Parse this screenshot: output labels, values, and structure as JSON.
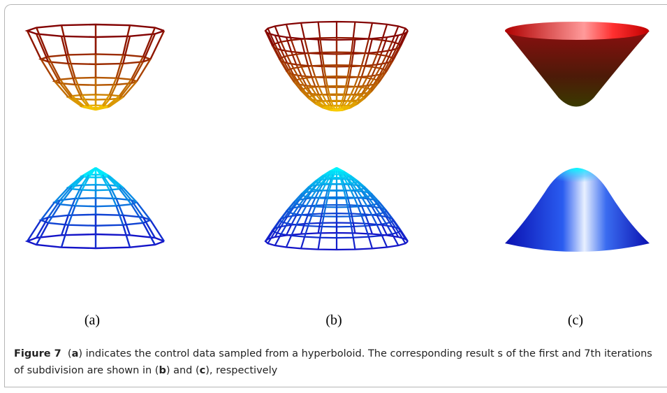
{
  "panels": [
    {
      "label": "(a)"
    },
    {
      "label": "(b)"
    },
    {
      "label": "(c)"
    }
  ],
  "caption": {
    "figure_label": "Figure 7",
    "segments": [
      "(",
      "a",
      ") indicates the control data sampled from a hyperboloid. The corresponding result s of the first and 7th iterations of subdivision are shown in (",
      "b",
      ") and (",
      "c",
      "), respectively"
    ]
  }
}
